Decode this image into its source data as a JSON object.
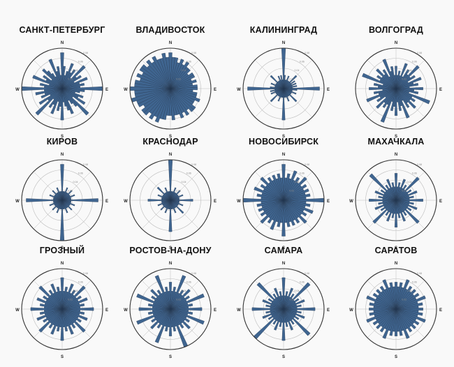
{
  "chart_data": [
    {
      "type": "polar-bar",
      "title": "САНКТ-ПЕТЕРБУРГ",
      "direction_labels": [
        "N",
        "E",
        "S",
        "W"
      ],
      "ring_labels": [
        "0.02",
        "0.04",
        "0.06",
        "0.08"
      ],
      "values": [
        0.08,
        0.05,
        0.03,
        0.04,
        0.06,
        0.04,
        0.05,
        0.03,
        0.07,
        0.04,
        0.05,
        0.03,
        0.06,
        0.04,
        0.05,
        0.04,
        0.09,
        0.05,
        0.04,
        0.03,
        0.05,
        0.04,
        0.06,
        0.03,
        0.08,
        0.05,
        0.04,
        0.03,
        0.06,
        0.05,
        0.04,
        0.03,
        0.07,
        0.04,
        0.05,
        0.03,
        0.06,
        0.04,
        0.05,
        0.03,
        0.08,
        0.04,
        0.06,
        0.03,
        0.05,
        0.04,
        0.06,
        0.04,
        0.09,
        0.04,
        0.05,
        0.03,
        0.07,
        0.04,
        0.05,
        0.03,
        0.06,
        0.05,
        0.04,
        0.03,
        0.07,
        0.04,
        0.05,
        0.03
      ]
    },
    {
      "type": "polar-bar",
      "title": "ВЛАДИВОСТОК",
      "direction_labels": [
        "N",
        "E",
        "S",
        "W"
      ],
      "ring_labels": [
        "0.02",
        "0.04",
        "0.06",
        "0.08"
      ],
      "values": [
        0.08,
        0.07,
        0.07,
        0.06,
        0.07,
        0.06,
        0.07,
        0.06,
        0.06,
        0.05,
        0.06,
        0.06,
        0.05,
        0.06,
        0.05,
        0.06,
        0.06,
        0.05,
        0.06,
        0.06,
        0.07,
        0.06,
        0.06,
        0.07,
        0.07,
        0.06,
        0.07,
        0.06,
        0.07,
        0.06,
        0.06,
        0.07,
        0.06,
        0.06,
        0.07,
        0.07,
        0.08,
        0.07,
        0.08,
        0.07,
        0.08,
        0.08,
        0.07,
        0.08,
        0.08,
        0.09,
        0.08,
        0.08,
        0.09,
        0.08,
        0.08,
        0.07,
        0.08,
        0.07,
        0.08,
        0.08,
        0.07,
        0.08,
        0.07,
        0.08,
        0.07,
        0.07,
        0.08,
        0.07
      ]
    },
    {
      "type": "polar-bar",
      "title": "КАЛИНИНГРАД",
      "direction_labels": [
        "N",
        "E",
        "S",
        "W"
      ],
      "ring_labels": [
        "0.02",
        "0.04",
        "0.06",
        "0.08"
      ],
      "values": [
        0.09,
        0.03,
        0.02,
        0.02,
        0.03,
        0.02,
        0.02,
        0.02,
        0.04,
        0.02,
        0.03,
        0.02,
        0.03,
        0.02,
        0.03,
        0.02,
        0.08,
        0.03,
        0.02,
        0.02,
        0.03,
        0.02,
        0.02,
        0.02,
        0.04,
        0.02,
        0.02,
        0.02,
        0.03,
        0.02,
        0.02,
        0.02,
        0.07,
        0.02,
        0.02,
        0.02,
        0.03,
        0.02,
        0.02,
        0.02,
        0.04,
        0.02,
        0.02,
        0.02,
        0.03,
        0.02,
        0.03,
        0.02,
        0.08,
        0.03,
        0.02,
        0.02,
        0.03,
        0.02,
        0.02,
        0.02,
        0.04,
        0.02,
        0.02,
        0.02,
        0.03,
        0.02,
        0.03,
        0.02
      ]
    },
    {
      "type": "polar-bar",
      "title": "ВОЛГОГРАД",
      "direction_labels": [
        "N",
        "E",
        "S"
      ],
      "ring_labels": [
        "0.02",
        "0.04",
        "0.06",
        "0.08"
      ],
      "values": [
        0.05,
        0.03,
        0.04,
        0.03,
        0.06,
        0.03,
        0.05,
        0.04,
        0.07,
        0.04,
        0.05,
        0.03,
        0.06,
        0.04,
        0.05,
        0.03,
        0.06,
        0.04,
        0.05,
        0.03,
        0.08,
        0.04,
        0.05,
        0.04,
        0.06,
        0.04,
        0.05,
        0.03,
        0.07,
        0.04,
        0.05,
        0.03,
        0.06,
        0.04,
        0.05,
        0.03,
        0.08,
        0.04,
        0.05,
        0.04,
        0.06,
        0.03,
        0.05,
        0.04,
        0.07,
        0.04,
        0.05,
        0.03,
        0.06,
        0.04,
        0.05,
        0.03,
        0.08,
        0.04,
        0.05,
        0.04,
        0.06,
        0.04,
        0.05,
        0.03,
        0.07,
        0.04,
        0.05,
        0.03
      ]
    },
    {
      "type": "polar-bar",
      "title": "КИРОВ",
      "direction_labels": [
        "N",
        "E",
        "S",
        "W"
      ],
      "ring_labels": [
        "0.02",
        "0.04",
        "0.06",
        "0.08"
      ],
      "values": [
        0.08,
        0.02,
        0.02,
        0.02,
        0.03,
        0.02,
        0.02,
        0.02,
        0.03,
        0.02,
        0.02,
        0.02,
        0.03,
        0.02,
        0.02,
        0.02,
        0.08,
        0.02,
        0.02,
        0.02,
        0.03,
        0.02,
        0.02,
        0.02,
        0.03,
        0.02,
        0.02,
        0.02,
        0.03,
        0.02,
        0.02,
        0.02,
        0.09,
        0.02,
        0.02,
        0.02,
        0.03,
        0.02,
        0.02,
        0.02,
        0.03,
        0.02,
        0.02,
        0.02,
        0.03,
        0.02,
        0.02,
        0.02,
        0.08,
        0.02,
        0.02,
        0.02,
        0.03,
        0.02,
        0.02,
        0.02,
        0.03,
        0.02,
        0.02,
        0.02,
        0.03,
        0.02,
        0.02,
        0.02
      ]
    },
    {
      "type": "polar-bar",
      "title": "КРАСНОДАР",
      "direction_labels": [
        "N",
        "E",
        "S",
        "W"
      ],
      "ring_labels": [
        "0.02",
        "0.04",
        "0.06",
        "0.08"
      ],
      "values": [
        0.09,
        0.02,
        0.02,
        0.02,
        0.03,
        0.02,
        0.02,
        0.02,
        0.03,
        0.02,
        0.02,
        0.02,
        0.03,
        0.02,
        0.02,
        0.02,
        0.05,
        0.02,
        0.02,
        0.02,
        0.03,
        0.02,
        0.02,
        0.02,
        0.04,
        0.02,
        0.02,
        0.02,
        0.03,
        0.02,
        0.02,
        0.02,
        0.07,
        0.02,
        0.02,
        0.02,
        0.03,
        0.02,
        0.02,
        0.02,
        0.03,
        0.02,
        0.02,
        0.02,
        0.03,
        0.02,
        0.02,
        0.02,
        0.05,
        0.02,
        0.02,
        0.02,
        0.03,
        0.02,
        0.02,
        0.02,
        0.04,
        0.02,
        0.02,
        0.02,
        0.03,
        0.02,
        0.02,
        0.02
      ]
    },
    {
      "type": "polar-bar",
      "title": "НОВОСИБИРСК",
      "direction_labels": [
        "N",
        "E",
        "S",
        "W"
      ],
      "ring_labels": [
        "0.02",
        "0.04",
        "0.06",
        "0.08"
      ],
      "values": [
        0.08,
        0.05,
        0.06,
        0.05,
        0.07,
        0.05,
        0.06,
        0.05,
        0.07,
        0.05,
        0.06,
        0.05,
        0.06,
        0.05,
        0.06,
        0.05,
        0.09,
        0.05,
        0.06,
        0.05,
        0.07,
        0.05,
        0.06,
        0.05,
        0.07,
        0.05,
        0.06,
        0.05,
        0.06,
        0.05,
        0.06,
        0.05,
        0.08,
        0.05,
        0.06,
        0.05,
        0.07,
        0.05,
        0.06,
        0.05,
        0.07,
        0.05,
        0.06,
        0.05,
        0.06,
        0.05,
        0.06,
        0.05,
        0.09,
        0.05,
        0.06,
        0.05,
        0.07,
        0.05,
        0.06,
        0.05,
        0.07,
        0.05,
        0.06,
        0.05,
        0.06,
        0.05,
        0.06,
        0.05
      ]
    },
    {
      "type": "polar-bar",
      "title": "МАХАЧКАЛА",
      "direction_labels": [
        "N",
        "E",
        "S",
        "W"
      ],
      "ring_labels": [
        "0.02",
        "0.04",
        "0.06",
        "0.08"
      ],
      "values": [
        0.06,
        0.03,
        0.04,
        0.03,
        0.05,
        0.03,
        0.04,
        0.03,
        0.07,
        0.03,
        0.04,
        0.03,
        0.05,
        0.03,
        0.04,
        0.03,
        0.06,
        0.03,
        0.04,
        0.03,
        0.05,
        0.03,
        0.04,
        0.03,
        0.07,
        0.03,
        0.04,
        0.03,
        0.05,
        0.03,
        0.04,
        0.03,
        0.06,
        0.03,
        0.04,
        0.03,
        0.05,
        0.03,
        0.04,
        0.03,
        0.07,
        0.03,
        0.04,
        0.03,
        0.05,
        0.03,
        0.04,
        0.03,
        0.06,
        0.03,
        0.04,
        0.03,
        0.05,
        0.03,
        0.04,
        0.03,
        0.08,
        0.03,
        0.04,
        0.03,
        0.05,
        0.03,
        0.04,
        0.03
      ]
    },
    {
      "type": "polar-bar",
      "title": "ГРОЗНЫЙ",
      "direction_labels": [
        "N",
        "E",
        "S",
        "W"
      ],
      "ring_labels": [
        "0.02",
        "0.04",
        "0.06",
        "0.08"
      ],
      "values": [
        0.07,
        0.04,
        0.05,
        0.04,
        0.06,
        0.04,
        0.05,
        0.04,
        0.07,
        0.04,
        0.05,
        0.04,
        0.06,
        0.04,
        0.05,
        0.04,
        0.07,
        0.04,
        0.05,
        0.04,
        0.06,
        0.04,
        0.05,
        0.04,
        0.07,
        0.04,
        0.05,
        0.04,
        0.06,
        0.04,
        0.05,
        0.04,
        0.07,
        0.04,
        0.05,
        0.04,
        0.06,
        0.04,
        0.05,
        0.04,
        0.07,
        0.04,
        0.05,
        0.04,
        0.06,
        0.04,
        0.05,
        0.04,
        0.07,
        0.04,
        0.05,
        0.04,
        0.06,
        0.04,
        0.05,
        0.04,
        0.07,
        0.04,
        0.05,
        0.04,
        0.06,
        0.04,
        0.05,
        0.04
      ]
    },
    {
      "type": "polar-bar",
      "title": "РОСТОВ-НА-ДОНУ",
      "direction_labels": [
        "N",
        "E",
        "S",
        "W"
      ],
      "ring_labels": [
        "0.02",
        "0.04",
        "0.06",
        "0.08"
      ],
      "values": [
        0.06,
        0.04,
        0.05,
        0.04,
        0.08,
        0.04,
        0.05,
        0.04,
        0.06,
        0.04,
        0.05,
        0.04,
        0.08,
        0.04,
        0.05,
        0.04,
        0.07,
        0.04,
        0.05,
        0.04,
        0.08,
        0.04,
        0.05,
        0.04,
        0.06,
        0.04,
        0.05,
        0.04,
        0.09,
        0.04,
        0.05,
        0.04,
        0.06,
        0.04,
        0.05,
        0.04,
        0.08,
        0.04,
        0.05,
        0.04,
        0.06,
        0.04,
        0.05,
        0.04,
        0.08,
        0.04,
        0.05,
        0.04,
        0.07,
        0.04,
        0.05,
        0.04,
        0.08,
        0.04,
        0.05,
        0.04,
        0.06,
        0.04,
        0.05,
        0.04,
        0.08,
        0.04,
        0.05,
        0.04
      ]
    },
    {
      "type": "polar-bar",
      "title": "САМАРА",
      "direction_labels": [
        "N",
        "E",
        "S",
        "W"
      ],
      "ring_labels": [
        "0.02",
        "0.04",
        "0.06",
        "0.08"
      ],
      "values": [
        0.07,
        0.03,
        0.04,
        0.03,
        0.05,
        0.03,
        0.04,
        0.03,
        0.08,
        0.03,
        0.04,
        0.03,
        0.05,
        0.03,
        0.04,
        0.03,
        0.07,
        0.03,
        0.04,
        0.03,
        0.05,
        0.03,
        0.04,
        0.03,
        0.08,
        0.03,
        0.04,
        0.03,
        0.05,
        0.03,
        0.04,
        0.03,
        0.07,
        0.03,
        0.04,
        0.03,
        0.05,
        0.03,
        0.04,
        0.03,
        0.09,
        0.03,
        0.04,
        0.03,
        0.05,
        0.03,
        0.04,
        0.03,
        0.07,
        0.03,
        0.04,
        0.03,
        0.05,
        0.03,
        0.04,
        0.03,
        0.08,
        0.03,
        0.04,
        0.03,
        0.05,
        0.03,
        0.04,
        0.03
      ]
    },
    {
      "type": "polar-bar",
      "title": "САРАТОВ",
      "direction_labels": [
        "N",
        "E",
        "S",
        "W"
      ],
      "ring_labels": [
        "0.02",
        "0.04",
        "0.06",
        "0.08"
      ],
      "values": [
        0.06,
        0.05,
        0.06,
        0.05,
        0.07,
        0.05,
        0.06,
        0.05,
        0.06,
        0.05,
        0.06,
        0.05,
        0.07,
        0.05,
        0.06,
        0.05,
        0.06,
        0.05,
        0.06,
        0.05,
        0.07,
        0.05,
        0.06,
        0.05,
        0.06,
        0.05,
        0.06,
        0.05,
        0.07,
        0.05,
        0.06,
        0.05,
        0.06,
        0.05,
        0.06,
        0.05,
        0.07,
        0.05,
        0.06,
        0.05,
        0.06,
        0.05,
        0.06,
        0.05,
        0.07,
        0.05,
        0.06,
        0.05,
        0.06,
        0.05,
        0.06,
        0.05,
        0.07,
        0.05,
        0.06,
        0.05,
        0.06,
        0.05,
        0.06,
        0.05,
        0.07,
        0.05,
        0.06,
        0.05
      ]
    }
  ],
  "colors": {
    "bar_fill": "#3f6590",
    "bar_stroke": "#24374f",
    "grid": "#bdbdbd",
    "outer_ring": "#333333",
    "background": "#f9f9f9"
  }
}
